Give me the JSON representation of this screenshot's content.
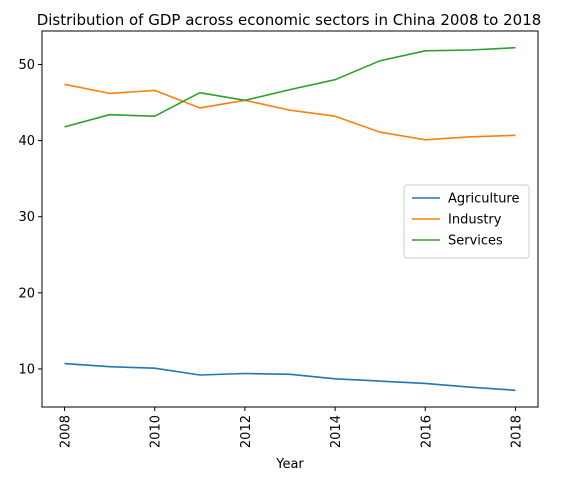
{
  "chart_data": {
    "type": "line",
    "title": "Distribution of GDP across economic sectors in China 2008 to 2018",
    "xlabel": "Year",
    "ylabel": "",
    "x": [
      2008,
      2009,
      2010,
      2011,
      2012,
      2013,
      2014,
      2015,
      2016,
      2017,
      2018
    ],
    "xlim": [
      2007.5,
      2018.5
    ],
    "ylim": [
      5.0,
      54.4
    ],
    "xticks": [
      2008,
      2010,
      2012,
      2014,
      2016,
      2018
    ],
    "yticks": [
      10,
      20,
      30,
      40,
      50
    ],
    "grid": false,
    "legend_position": "center-right",
    "series": [
      {
        "name": "Agriculture",
        "color": "#1f77b4",
        "values": [
          10.7,
          10.3,
          10.1,
          9.2,
          9.4,
          9.3,
          8.7,
          8.4,
          8.1,
          7.6,
          7.2
        ]
      },
      {
        "name": "Industry",
        "color": "#ff7f0e",
        "values": [
          47.4,
          46.2,
          46.6,
          44.3,
          45.3,
          44.0,
          43.2,
          41.1,
          40.1,
          40.5,
          40.7
        ]
      },
      {
        "name": "Services",
        "color": "#2ca02c",
        "values": [
          41.8,
          43.4,
          43.2,
          46.3,
          45.3,
          46.7,
          48.0,
          50.5,
          51.8,
          51.9,
          52.2
        ]
      }
    ]
  }
}
